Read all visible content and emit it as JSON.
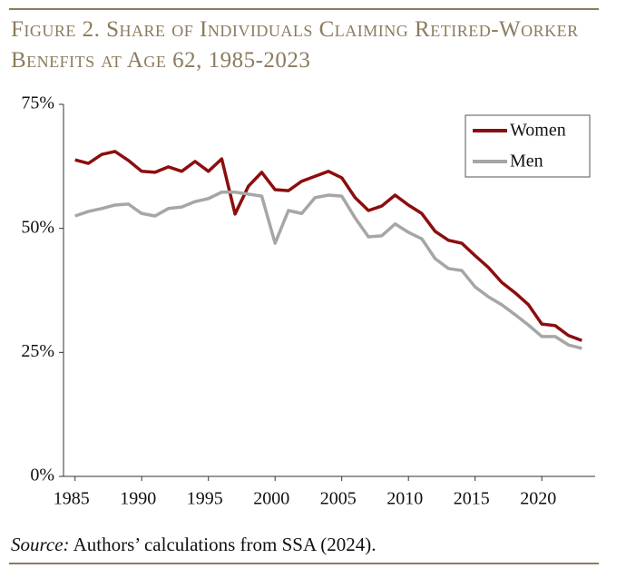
{
  "chart_data": {
    "type": "line",
    "title": "Figure 2. Share of Individuals Claiming Retired-Worker Benefits at Age 62, 1985-2023",
    "source_label": "Source:",
    "source": "Authors’ calculations from SSA (2024).",
    "x": [
      1985,
      1986,
      1987,
      1988,
      1989,
      1990,
      1991,
      1992,
      1993,
      1994,
      1995,
      1996,
      1997,
      1998,
      1999,
      2000,
      2001,
      2002,
      2003,
      2004,
      2005,
      2006,
      2007,
      2008,
      2009,
      2010,
      2011,
      2012,
      2013,
      2014,
      2015,
      2016,
      2017,
      2018,
      2019,
      2020,
      2021,
      2022,
      2023
    ],
    "series": [
      {
        "name": "Women",
        "color": "#8b0e0e",
        "values": [
          63.8,
          63.1,
          64.9,
          65.5,
          63.7,
          61.5,
          61.3,
          62.4,
          61.5,
          63.5,
          61.5,
          64.0,
          52.9,
          58.5,
          61.3,
          57.8,
          57.6,
          59.5,
          60.5,
          61.5,
          60.2,
          56.2,
          53.6,
          54.5,
          56.7,
          54.7,
          53.0,
          49.4,
          47.6,
          47.0,
          44.5,
          42.1,
          39.1,
          37.0,
          34.6,
          30.7,
          30.4,
          28.4,
          27.4
        ]
      },
      {
        "name": "Men",
        "color": "#a6a6a6",
        "values": [
          52.5,
          53.4,
          54.0,
          54.7,
          54.9,
          53.0,
          52.5,
          54.0,
          54.3,
          55.4,
          56.0,
          57.3,
          57.3,
          56.9,
          56.5,
          47.0,
          53.6,
          53.0,
          56.2,
          56.7,
          56.5,
          52.1,
          48.3,
          48.5,
          50.9,
          49.2,
          47.9,
          43.9,
          41.9,
          41.5,
          38.2,
          36.2,
          34.6,
          32.6,
          30.5,
          28.2,
          28.2,
          26.5,
          25.8
        ]
      }
    ],
    "xlim": [
      1984,
      2024
    ],
    "xticks": [
      1985,
      1990,
      1995,
      2000,
      2005,
      2010,
      2015,
      2020
    ],
    "ylim": [
      0,
      75
    ],
    "yticks": [
      {
        "value": 0,
        "label": "0%"
      },
      {
        "value": 25,
        "label": "25%"
      },
      {
        "value": 50,
        "label": "50%"
      },
      {
        "value": 75,
        "label": "75%"
      }
    ],
    "grid": false,
    "legend": "upper right"
  }
}
